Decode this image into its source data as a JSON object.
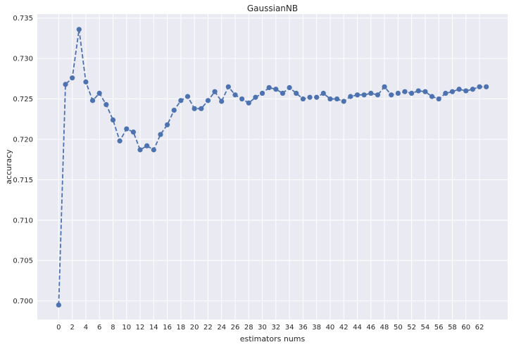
{
  "chart_data": {
    "type": "line",
    "title": "GaussianNB",
    "xlabel": "estimators nums",
    "ylabel": "accuracy",
    "xlim": [
      -3.15,
      66.15
    ],
    "ylim": [
      0.6977,
      0.7355
    ],
    "xticks": [
      0,
      2,
      4,
      6,
      8,
      10,
      12,
      14,
      16,
      18,
      20,
      22,
      24,
      26,
      28,
      30,
      32,
      34,
      36,
      38,
      40,
      42,
      44,
      46,
      48,
      50,
      52,
      54,
      56,
      58,
      60,
      62
    ],
    "yticks": [
      0.7,
      0.705,
      0.71,
      0.715,
      0.72,
      0.725,
      0.73,
      0.735
    ],
    "ytick_labels": [
      "0.700",
      "0.705",
      "0.710",
      "0.715",
      "0.720",
      "0.725",
      "0.730",
      "0.735"
    ],
    "grid": true,
    "color": "#4c72b0",
    "line_style": "dashed",
    "marker": "circle",
    "x": [
      0,
      1,
      2,
      3,
      4,
      5,
      6,
      7,
      8,
      9,
      10,
      11,
      12,
      13,
      14,
      15,
      16,
      17,
      18,
      19,
      20,
      21,
      22,
      23,
      24,
      25,
      26,
      27,
      28,
      29,
      30,
      31,
      32,
      33,
      34,
      35,
      36,
      37,
      38,
      39,
      40,
      41,
      42,
      43,
      44,
      45,
      46,
      47,
      48,
      49,
      50,
      51,
      52,
      53,
      54,
      55,
      56,
      57,
      58,
      59,
      60,
      61,
      62,
      63
    ],
    "y": [
      0.6995,
      0.7268,
      0.7276,
      0.7336,
      0.7271,
      0.7248,
      0.7257,
      0.7243,
      0.7224,
      0.7198,
      0.7213,
      0.7209,
      0.7187,
      0.7192,
      0.7187,
      0.7206,
      0.7218,
      0.7236,
      0.7248,
      0.7253,
      0.7238,
      0.7238,
      0.7248,
      0.7259,
      0.7247,
      0.7265,
      0.7255,
      0.725,
      0.7245,
      0.7252,
      0.7257,
      0.7264,
      0.7262,
      0.7257,
      0.7264,
      0.7257,
      0.725,
      0.7252,
      0.7252,
      0.7257,
      0.725,
      0.725,
      0.7247,
      0.7253,
      0.7255,
      0.7255,
      0.7257,
      0.7255,
      0.7265,
      0.7255,
      0.7257,
      0.7259,
      0.7257,
      0.726,
      0.7259,
      0.7253,
      0.725,
      0.7257,
      0.7259,
      0.7262,
      0.726,
      0.7262,
      0.7265,
      0.7265
    ]
  }
}
